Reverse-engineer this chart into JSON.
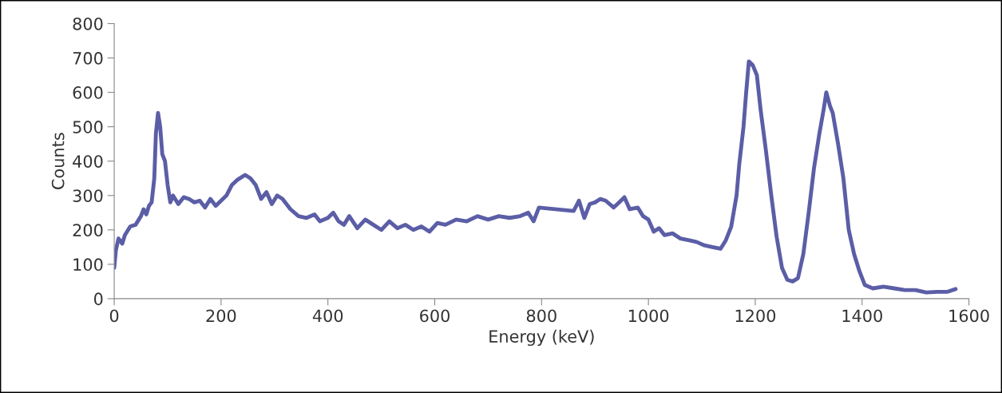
{
  "chart_data": {
    "type": "line",
    "xlabel": "Energy (keV)",
    "ylabel": "Counts",
    "xlim": [
      0,
      1600
    ],
    "xticks": [
      0,
      200,
      400,
      600,
      800,
      1000,
      1200,
      1400,
      1600
    ],
    "ylim": [
      0,
      800
    ],
    "yticks": [
      0,
      100,
      200,
      300,
      400,
      500,
      600,
      700,
      800
    ],
    "grid": false,
    "legend": false,
    "marker": "none",
    "line_style": "solid",
    "series": [
      {
        "color": "#5b5ea6",
        "x": [
          0,
          3,
          8,
          15,
          20,
          30,
          40,
          50,
          55,
          60,
          65,
          70,
          75,
          78,
          82,
          86,
          90,
          95,
          100,
          105,
          110,
          120,
          130,
          140,
          150,
          160,
          170,
          180,
          190,
          200,
          210,
          220,
          230,
          245,
          255,
          265,
          275,
          285,
          295,
          305,
          315,
          330,
          345,
          360,
          375,
          385,
          400,
          410,
          420,
          430,
          440,
          455,
          470,
          485,
          500,
          515,
          530,
          545,
          560,
          575,
          590,
          605,
          620,
          640,
          660,
          680,
          700,
          720,
          740,
          760,
          775,
          785,
          795,
          860,
          870,
          880,
          890,
          900,
          910,
          920,
          935,
          945,
          955,
          965,
          980,
          990,
          1000,
          1010,
          1020,
          1030,
          1045,
          1060,
          1075,
          1090,
          1105,
          1120,
          1135,
          1145,
          1155,
          1165,
          1170,
          1178,
          1183,
          1188,
          1195,
          1203,
          1210,
          1220,
          1230,
          1240,
          1250,
          1260,
          1270,
          1280,
          1290,
          1300,
          1310,
          1320,
          1328,
          1333,
          1340,
          1345,
          1355,
          1365,
          1375,
          1385,
          1395,
          1405,
          1420,
          1440,
          1460,
          1480,
          1500,
          1520,
          1540,
          1560,
          1575
        ],
        "values": [
          90,
          140,
          175,
          160,
          185,
          210,
          215,
          240,
          260,
          245,
          270,
          280,
          350,
          480,
          540,
          500,
          420,
          400,
          330,
          280,
          300,
          275,
          295,
          290,
          280,
          285,
          265,
          290,
          270,
          285,
          300,
          330,
          345,
          360,
          350,
          330,
          290,
          310,
          275,
          300,
          290,
          260,
          240,
          235,
          245,
          225,
          235,
          250,
          225,
          215,
          240,
          205,
          230,
          215,
          200,
          225,
          205,
          215,
          200,
          210,
          195,
          220,
          215,
          230,
          225,
          240,
          230,
          240,
          235,
          240,
          250,
          225,
          265,
          255,
          285,
          235,
          275,
          280,
          290,
          285,
          265,
          280,
          295,
          260,
          265,
          240,
          230,
          195,
          205,
          185,
          190,
          175,
          170,
          165,
          155,
          150,
          145,
          170,
          210,
          300,
          390,
          500,
          600,
          690,
          680,
          650,
          550,
          430,
          300,
          180,
          90,
          55,
          50,
          60,
          130,
          250,
          380,
          480,
          550,
          600,
          560,
          540,
          450,
          350,
          200,
          130,
          80,
          40,
          30,
          35,
          30,
          25,
          25,
          18,
          20,
          20,
          28
        ]
      }
    ]
  }
}
